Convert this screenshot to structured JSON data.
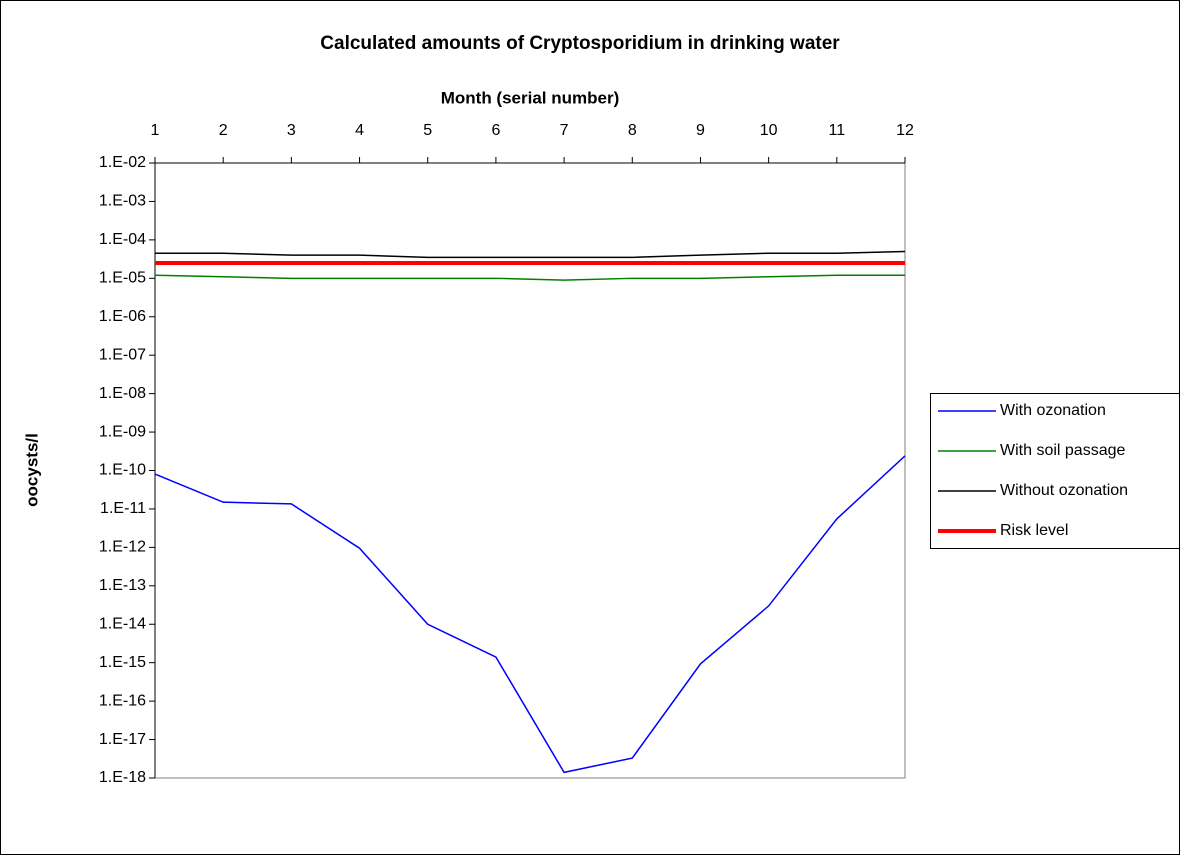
{
  "chart_data": {
    "type": "line",
    "title": "Calculated amounts of Cryptosporidium in drinking water",
    "x_label": "Month (serial number)",
    "y_label": "oocysts/l",
    "x": [
      1,
      2,
      3,
      4,
      5,
      6,
      7,
      8,
      9,
      10,
      11,
      12
    ],
    "xlim": [
      1,
      12
    ],
    "xticks": [
      1,
      2,
      3,
      4,
      5,
      6,
      7,
      8,
      9,
      10,
      11,
      12
    ],
    "x_axis_position": "top",
    "log_y": true,
    "ylim": [
      1e-18,
      0.01
    ],
    "yticks": [
      {
        "value": 1e-18,
        "label": "1.E-18"
      },
      {
        "value": 1e-17,
        "label": "1.E-17"
      },
      {
        "value": 1e-16,
        "label": "1.E-16"
      },
      {
        "value": 1e-15,
        "label": "1.E-15"
      },
      {
        "value": 1e-14,
        "label": "1.E-14"
      },
      {
        "value": 1e-13,
        "label": "1.E-13"
      },
      {
        "value": 1e-12,
        "label": "1.E-12"
      },
      {
        "value": 1e-11,
        "label": "1.E-11"
      },
      {
        "value": 1e-10,
        "label": "1.E-10"
      },
      {
        "value": 1e-09,
        "label": "1.E-09"
      },
      {
        "value": 1e-08,
        "label": "1.E-08"
      },
      {
        "value": 1e-07,
        "label": "1.E-07"
      },
      {
        "value": 1e-06,
        "label": "1.E-06"
      },
      {
        "value": 1e-05,
        "label": "1.E-05"
      },
      {
        "value": 0.0001,
        "label": "1.E-04"
      },
      {
        "value": 0.001,
        "label": "1.E-03"
      },
      {
        "value": 0.01,
        "label": "1.E-02"
      }
    ],
    "grid": false,
    "legend": "right",
    "series": [
      {
        "name": "With ozonation",
        "color": "#0000ff",
        "width": 1.5,
        "values": [
          8.1e-11,
          1.5e-11,
          1.35e-11,
          9.5e-13,
          1e-14,
          1.4e-15,
          1.4e-18,
          3.3e-18,
          9.3e-16,
          3e-14,
          5.5e-12,
          2.4e-10
        ]
      },
      {
        "name": "With soil passage",
        "color": "#008000",
        "width": 1.5,
        "values": [
          1.2e-05,
          1.1e-05,
          1e-05,
          1e-05,
          1e-05,
          1e-05,
          9e-06,
          1e-05,
          1e-05,
          1.1e-05,
          1.2e-05,
          1.2e-05
        ]
      },
      {
        "name": "Without ozonation",
        "color": "#000000",
        "width": 1.5,
        "values": [
          4.5e-05,
          4.5e-05,
          4e-05,
          4e-05,
          3.5e-05,
          3.5e-05,
          3.5e-05,
          3.5e-05,
          4e-05,
          4.5e-05,
          4.5e-05,
          5e-05
        ]
      },
      {
        "name": "Risk level",
        "color": "#ff0000",
        "width": 4,
        "values": [
          2.5e-05,
          2.5e-05,
          2.5e-05,
          2.5e-05,
          2.5e-05,
          2.5e-05,
          2.5e-05,
          2.5e-05,
          2.5e-05,
          2.5e-05,
          2.5e-05,
          2.5e-05
        ]
      }
    ]
  }
}
